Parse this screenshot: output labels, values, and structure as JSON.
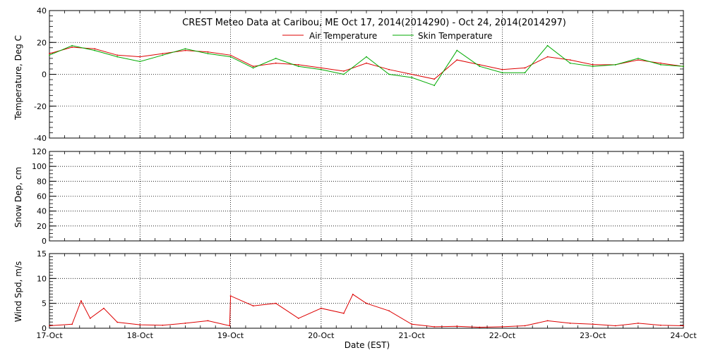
{
  "chart_data": [
    {
      "type": "line",
      "title": "CREST Meteo Data at Caribou, ME   Oct 17, 2014(2014290) - Oct 24, 2014(2014297)",
      "xlabel": "",
      "ylabel": "Temperature, Deg C",
      "xlim": [
        0,
        7
      ],
      "ylim": [
        -40,
        40
      ],
      "y_ticks": [
        -40,
        -20,
        0,
        20,
        40
      ],
      "grid": true,
      "legend": "top-center",
      "x": [
        0,
        0.25,
        0.5,
        0.75,
        1.0,
        1.25,
        1.5,
        1.75,
        2.0,
        2.25,
        2.5,
        2.75,
        3.0,
        3.25,
        3.5,
        3.75,
        4.0,
        4.25,
        4.5,
        4.75,
        5.0,
        5.25,
        5.5,
        5.75,
        6.0,
        6.25,
        6.5,
        6.75,
        7.0
      ],
      "series": [
        {
          "name": "Air Temperature",
          "color": "#dd0000",
          "values": [
            13,
            17,
            16,
            12,
            11,
            13,
            15,
            14,
            12,
            5,
            7,
            6,
            4,
            2,
            7,
            3,
            0,
            -3,
            9,
            6,
            3,
            4,
            11,
            9,
            6,
            6,
            9,
            7,
            5
          ]
        },
        {
          "name": "Skin Temperature",
          "color": "#00aa00",
          "values": [
            12,
            18,
            15,
            11,
            8,
            12,
            16,
            13,
            11,
            4,
            10,
            5,
            3,
            0,
            11,
            0,
            -2,
            -7,
            15,
            5,
            1,
            1,
            18,
            7,
            5,
            6,
            10,
            6,
            5
          ]
        }
      ]
    },
    {
      "type": "line",
      "ylabel": "Snow Dep, cm",
      "xlim": [
        0,
        7
      ],
      "ylim": [
        0,
        120
      ],
      "y_ticks": [
        0,
        20,
        40,
        60,
        80,
        100,
        120
      ],
      "grid": true,
      "series": []
    },
    {
      "type": "line",
      "xlabel": "Date (EST)",
      "ylabel": "Wind Spd, m/s",
      "xlim": [
        0,
        7
      ],
      "ylim": [
        0,
        15
      ],
      "y_ticks": [
        0,
        5,
        10,
        15
      ],
      "grid": true,
      "x_tick_labels": [
        "17-Oct",
        "18-Oct",
        "19-Oct",
        "20-Oct",
        "21-Oct",
        "22-Oct",
        "23-Oct",
        "24-Oct"
      ],
      "x": [
        0,
        0.25,
        0.35,
        0.45,
        0.6,
        0.75,
        1.0,
        1.25,
        1.5,
        1.75,
        1.99,
        2.0,
        2.25,
        2.5,
        2.75,
        3.0,
        3.25,
        3.35,
        3.5,
        3.75,
        4.0,
        4.25,
        4.5,
        4.75,
        5.0,
        5.25,
        5.5,
        5.75,
        6.0,
        6.25,
        6.5,
        6.75,
        7.0
      ],
      "series": [
        {
          "color": "#dd0000",
          "values": [
            0.5,
            0.8,
            5.5,
            2.0,
            4.0,
            1.2,
            0.7,
            0.6,
            1.0,
            1.5,
            0.5,
            6.5,
            4.5,
            5.0,
            2.0,
            4.0,
            3.0,
            6.8,
            5.0,
            3.5,
            0.8,
            0.3,
            0.4,
            0.2,
            0.3,
            0.5,
            1.5,
            1.0,
            0.8,
            0.5,
            1.0,
            0.6,
            0.5
          ]
        }
      ]
    }
  ]
}
